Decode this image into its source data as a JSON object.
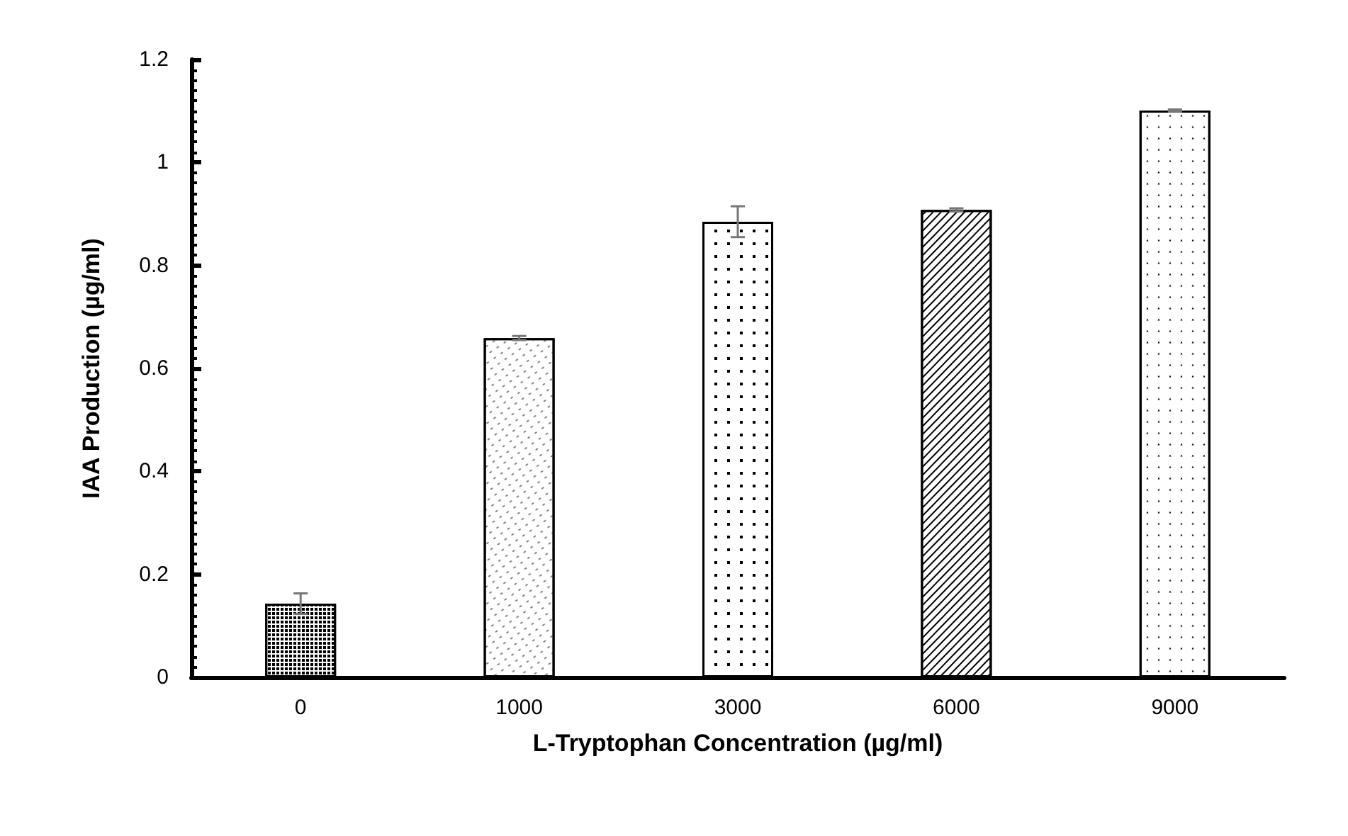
{
  "chart_data": {
    "type": "bar",
    "xlabel": "L-Tryptophan Concentration (µg/ml)",
    "ylabel": "IAA Production (µg/ml)",
    "categories": [
      "0",
      "1000",
      "3000",
      "6000",
      "9000"
    ],
    "values": [
      0.143,
      0.659,
      0.885,
      0.908,
      1.101
    ],
    "errors": [
      0.02,
      0.004,
      0.03,
      0.003,
      0.002
    ],
    "colors": [
      "#ffffff",
      "#ffffff",
      "#ffffff",
      "#ffffff",
      "#ffffff"
    ],
    "ylim": [
      0,
      1.2
    ],
    "yticks": [
      0,
      0.2,
      0.4,
      0.6,
      0.8,
      1,
      1.2
    ]
  }
}
